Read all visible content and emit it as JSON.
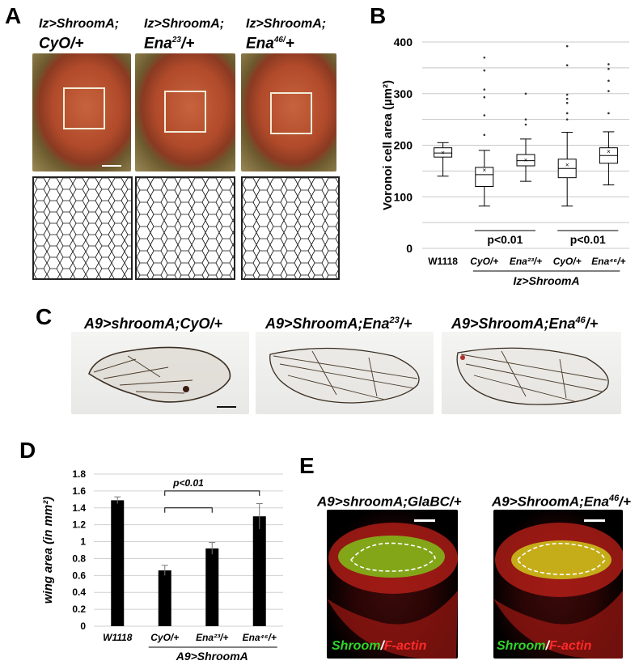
{
  "panelA": {
    "letter": "A",
    "columns": [
      {
        "line1": "Iz>ShroomA;",
        "line2_main": "CyO",
        "line2_sup": "",
        "line2_tail": "/+"
      },
      {
        "line1": "Iz>ShroomA;",
        "line2_main": "Ena",
        "line2_sup": "23",
        "line2_tail": "/+"
      },
      {
        "line1": "Iz>ShroomA;",
        "line2_main": "Ena",
        "line2_sup": "46/",
        "line2_tail": "+"
      }
    ]
  },
  "panelB": {
    "letter": "B",
    "ylabel": "Voronoi cell area (µm²)",
    "ticks": [
      "0",
      "100",
      "200",
      "300",
      "400"
    ],
    "categories": [
      "W1118",
      "CyO/+",
      "Ena²³/+",
      "CyO/+",
      "Ena⁴⁶/+"
    ],
    "group_label": "Iz>ShroomA",
    "pvalues": [
      "p<0.01",
      "p<0.01"
    ]
  },
  "panelC": {
    "letter": "C",
    "titles": [
      {
        "main": "A9>shroomA;CyO/+",
        "sup": "",
        "tail": ""
      },
      {
        "main": "A9>ShroomA;Ena",
        "sup": "23",
        "tail": "/+"
      },
      {
        "main": "A9>ShroomA;Ena",
        "sup": "46",
        "tail": "/+"
      }
    ]
  },
  "panelD": {
    "letter": "D",
    "ylabel": "wing area (in mm²)",
    "ticks": [
      "0",
      "0.2",
      "0.4",
      "0.6",
      "0.8",
      "1",
      "1.2",
      "1.4",
      "1.6",
      "1.8"
    ],
    "group_label": "A9>ShroomA",
    "pvalue": "p<0.01"
  },
  "panelE": {
    "letter": "E",
    "titles": [
      {
        "main": "A9>shroomA;GlaBC/+",
        "sup": "",
        "tail": ""
      },
      {
        "main": "A9>ShroomA;Ena",
        "sup": "46",
        "tail": "/+"
      }
    ],
    "stain_green": "Shroom",
    "stain_sep": "/",
    "stain_red": "F-actin"
  },
  "chart_data": [
    {
      "type": "box",
      "ylabel": "Voronoi cell area (µm²)",
      "ylim": [
        0,
        400
      ],
      "categories": [
        "W1118",
        "CyO/+",
        "Ena23/+",
        "CyO/+",
        "Ena46/+"
      ],
      "series": [
        {
          "whisker_low": [
            140,
            82,
            130,
            82,
            123
          ],
          "q1": [
            177,
            120,
            160,
            137,
            165
          ],
          "median": [
            185,
            143,
            170,
            155,
            180
          ],
          "q3": [
            195,
            157,
            182,
            173,
            195
          ],
          "whisker_high": [
            205,
            190,
            212,
            225,
            226
          ],
          "mean": [
            186,
            152,
            172,
            162,
            188
          ]
        }
      ],
      "outliers": [
        [],
        [
          220,
          258,
          293,
          308,
          345,
          370
        ],
        [
          240,
          250,
          300
        ],
        [
          250,
          262,
          282,
          290,
          298,
          355,
          392
        ],
        [
          262,
          305,
          325,
          348,
          357
        ]
      ],
      "grid": true
    },
    {
      "type": "bar",
      "ylabel": "wing area (in mm²)",
      "ylim": [
        0,
        1.8
      ],
      "categories": [
        "W1118",
        "CyO/+",
        "Ena²³/+",
        "Ena⁴⁶/+"
      ],
      "values": [
        1.49,
        0.66,
        0.92,
        1.3
      ],
      "errors": [
        0.04,
        0.06,
        0.07,
        0.15
      ],
      "bar_color": "#000000",
      "grid": true
    }
  ]
}
